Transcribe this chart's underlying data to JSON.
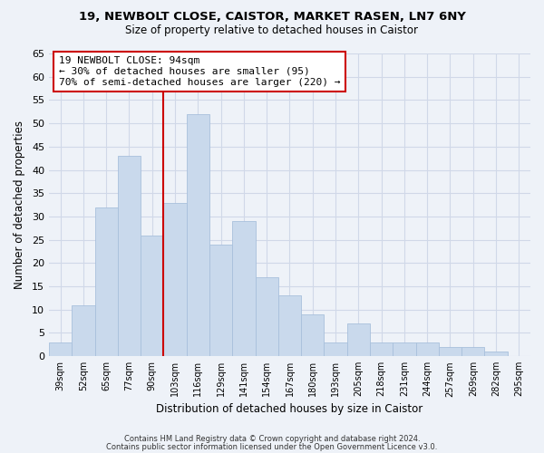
{
  "title1": "19, NEWBOLT CLOSE, CAISTOR, MARKET RASEN, LN7 6NY",
  "title2": "Size of property relative to detached houses in Caistor",
  "xlabel": "Distribution of detached houses by size in Caistor",
  "ylabel": "Number of detached properties",
  "categories": [
    "39sqm",
    "52sqm",
    "65sqm",
    "77sqm",
    "90sqm",
    "103sqm",
    "116sqm",
    "129sqm",
    "141sqm",
    "154sqm",
    "167sqm",
    "180sqm",
    "193sqm",
    "205sqm",
    "218sqm",
    "231sqm",
    "244sqm",
    "257sqm",
    "269sqm",
    "282sqm",
    "295sqm"
  ],
  "values": [
    3,
    11,
    32,
    43,
    26,
    33,
    52,
    24,
    29,
    17,
    13,
    9,
    3,
    7,
    3,
    3,
    3,
    2,
    2,
    1,
    0
  ],
  "bar_color": "#c9d9ec",
  "bar_edge_color": "#a8c0dc",
  "vline_x": 4.5,
  "vline_color": "#cc0000",
  "annotation_lines": [
    "19 NEWBOLT CLOSE: 94sqm",
    "← 30% of detached houses are smaller (95)",
    "70% of semi-detached houses are larger (220) →"
  ],
  "ylim": [
    0,
    65
  ],
  "yticks": [
    0,
    5,
    10,
    15,
    20,
    25,
    30,
    35,
    40,
    45,
    50,
    55,
    60,
    65
  ],
  "footer1": "Contains HM Land Registry data © Crown copyright and database right 2024.",
  "footer2": "Contains public sector information licensed under the Open Government Licence v3.0.",
  "background_color": "#eef2f8",
  "grid_color": "#d0d8e8"
}
